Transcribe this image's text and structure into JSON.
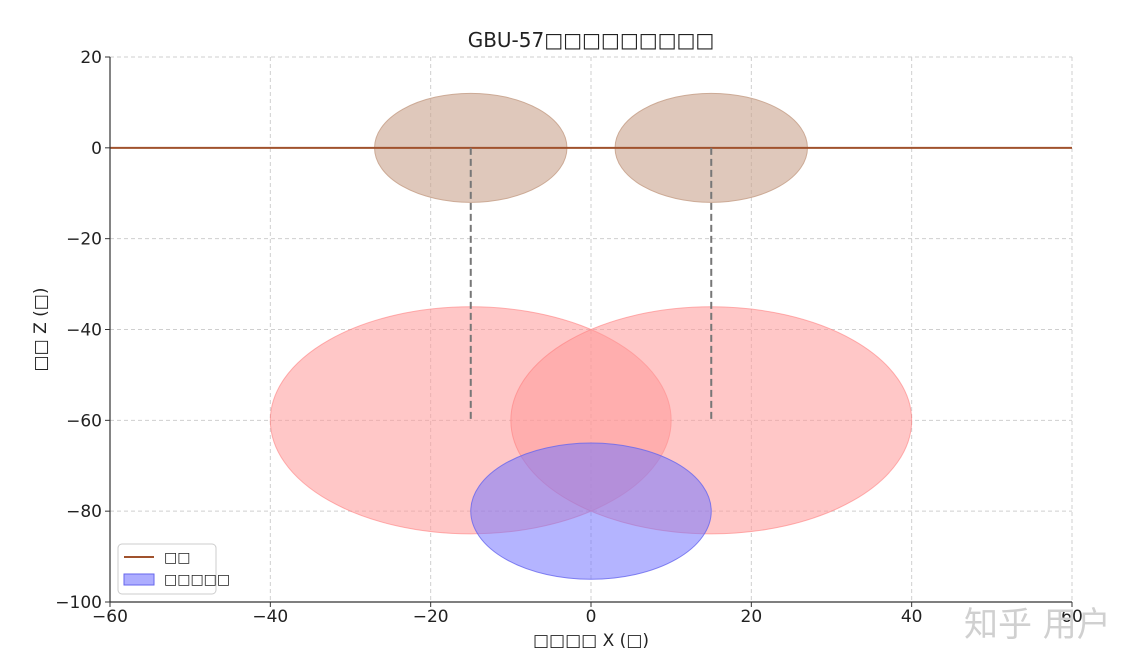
{
  "chart_data": {
    "type": "scatter",
    "title": "GBU-57□□□□□□□□□",
    "xlabel": "□□□□ X (□)",
    "ylabel": "□□ Z (□)",
    "xlim": [
      -60,
      60
    ],
    "ylim": [
      -100,
      20
    ],
    "xticks": [
      -60,
      -40,
      -20,
      0,
      20,
      40,
      60
    ],
    "yticks": [
      -100,
      -80,
      -60,
      -40,
      -20,
      0,
      20
    ],
    "xtick_labels": [
      "−60",
      "−40",
      "−20",
      "0",
      "20",
      "40",
      "60"
    ],
    "ytick_labels": [
      "−100",
      "−80",
      "−60",
      "−40",
      "−20",
      "0",
      "20"
    ],
    "grid": true,
    "legend_position": "lower-left",
    "ground_line": {
      "name": "□□",
      "y": 0,
      "color": "#a0522d"
    },
    "surface_ellipses": [
      {
        "cx": -15,
        "cy": 0,
        "rx": 12,
        "ry": 12,
        "color": "#c9a48e",
        "opacity": 0.6
      },
      {
        "cx": 15,
        "cy": 0,
        "rx": 12,
        "ry": 12,
        "color": "#c9a48e",
        "opacity": 0.6
      }
    ],
    "bomb_paths": [
      {
        "x": -15,
        "y_from": 0,
        "y_to": -60,
        "color": "#777777"
      },
      {
        "x": 15,
        "y_from": 0,
        "y_to": -60,
        "color": "#777777"
      }
    ],
    "blast_ellipses": [
      {
        "cx": -15,
        "cy": -60,
        "rx": 25,
        "ry": 25,
        "color": "#ff9999",
        "opacity": 0.55
      },
      {
        "cx": 15,
        "cy": -60,
        "rx": 25,
        "ry": 25,
        "color": "#ff9999",
        "opacity": 0.55
      }
    ],
    "target_zone": {
      "name": "□□□□□",
      "cx": 0,
      "cy": -80,
      "rx": 15,
      "ry": 15,
      "color": "#7777ff",
      "opacity": 0.55
    }
  },
  "watermark": "知乎 用户"
}
